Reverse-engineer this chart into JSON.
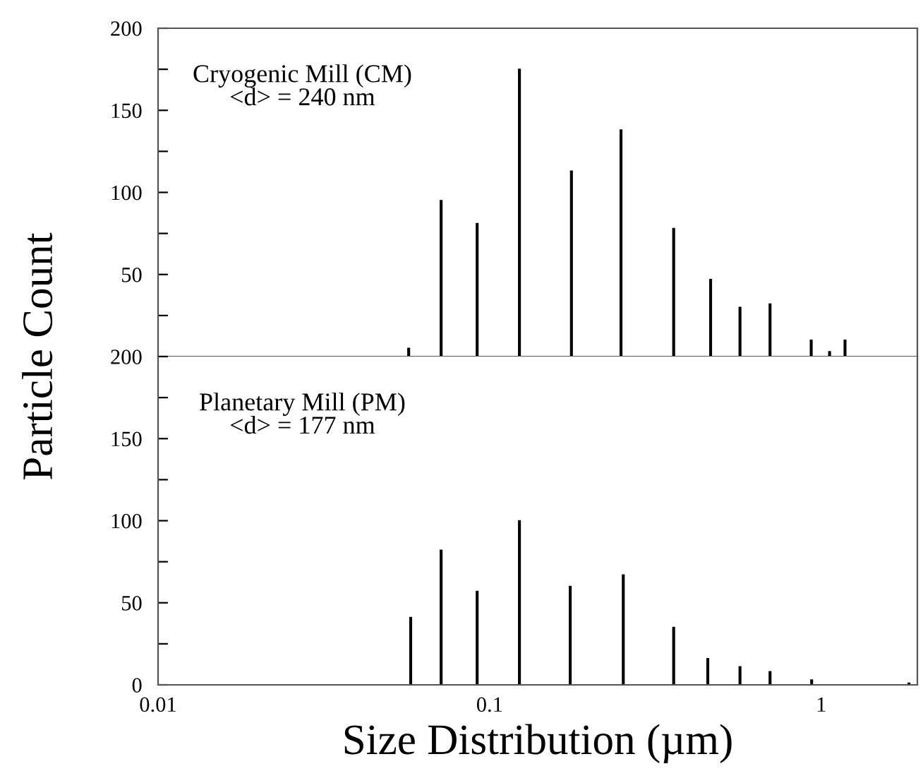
{
  "chart_data": [
    {
      "type": "bar",
      "x": [
        0.057,
        0.0714,
        0.0917,
        0.123,
        0.1765,
        0.249,
        0.359,
        0.464,
        0.569,
        0.701,
        0.933,
        1.06,
        1.18
      ],
      "values": [
        5,
        95,
        81,
        175,
        113,
        138,
        78,
        47,
        30,
        32,
        10,
        3,
        10
      ],
      "color": "#000000",
      "ylabel": "Particle Count",
      "annotations": [
        "Cryogenic Mill (CM)\n<d> = 240 nm"
      ],
      "log": "x",
      "xlim": [
        0.01,
        1.95
      ],
      "xticks": [
        0.01,
        0.1,
        1
      ],
      "tick_labels": "y",
      "ylim": [
        0,
        200
      ],
      "yticks": [
        {
          "value": 0,
          "label": null
        },
        {
          "value": 25,
          "label": null
        },
        50,
        {
          "value": 75,
          "label": null
        },
        100,
        {
          "value": 125,
          "label": null
        },
        150,
        {
          "value": 175,
          "label": null
        },
        200
      ],
      "grid": false
    },
    {
      "type": "bar",
      "x": [
        0.0578,
        0.0714,
        0.0917,
        0.123,
        0.175,
        0.253,
        0.359,
        0.455,
        0.569,
        0.701,
        0.936,
        1.84
      ],
      "values": [
        41,
        82,
        57,
        100,
        60,
        67,
        35,
        16,
        11,
        8,
        3,
        1
      ],
      "color": "#000000",
      "xlabel": "Size Distribution (µm)",
      "annotations": [
        "Planetary Mill (PM)\n<d> = 177 nm"
      ],
      "log": "x",
      "xlim": [
        0.01,
        1.95
      ],
      "xticks": [
        0.01,
        0.1,
        1
      ],
      "ylim": [
        0,
        200
      ],
      "yticks": [
        0,
        {
          "value": 25,
          "label": null
        },
        50,
        {
          "value": 75,
          "label": null
        },
        100,
        {
          "value": 125,
          "label": null
        },
        150,
        {
          "value": 175,
          "label": null
        },
        200
      ],
      "grid": false
    }
  ]
}
